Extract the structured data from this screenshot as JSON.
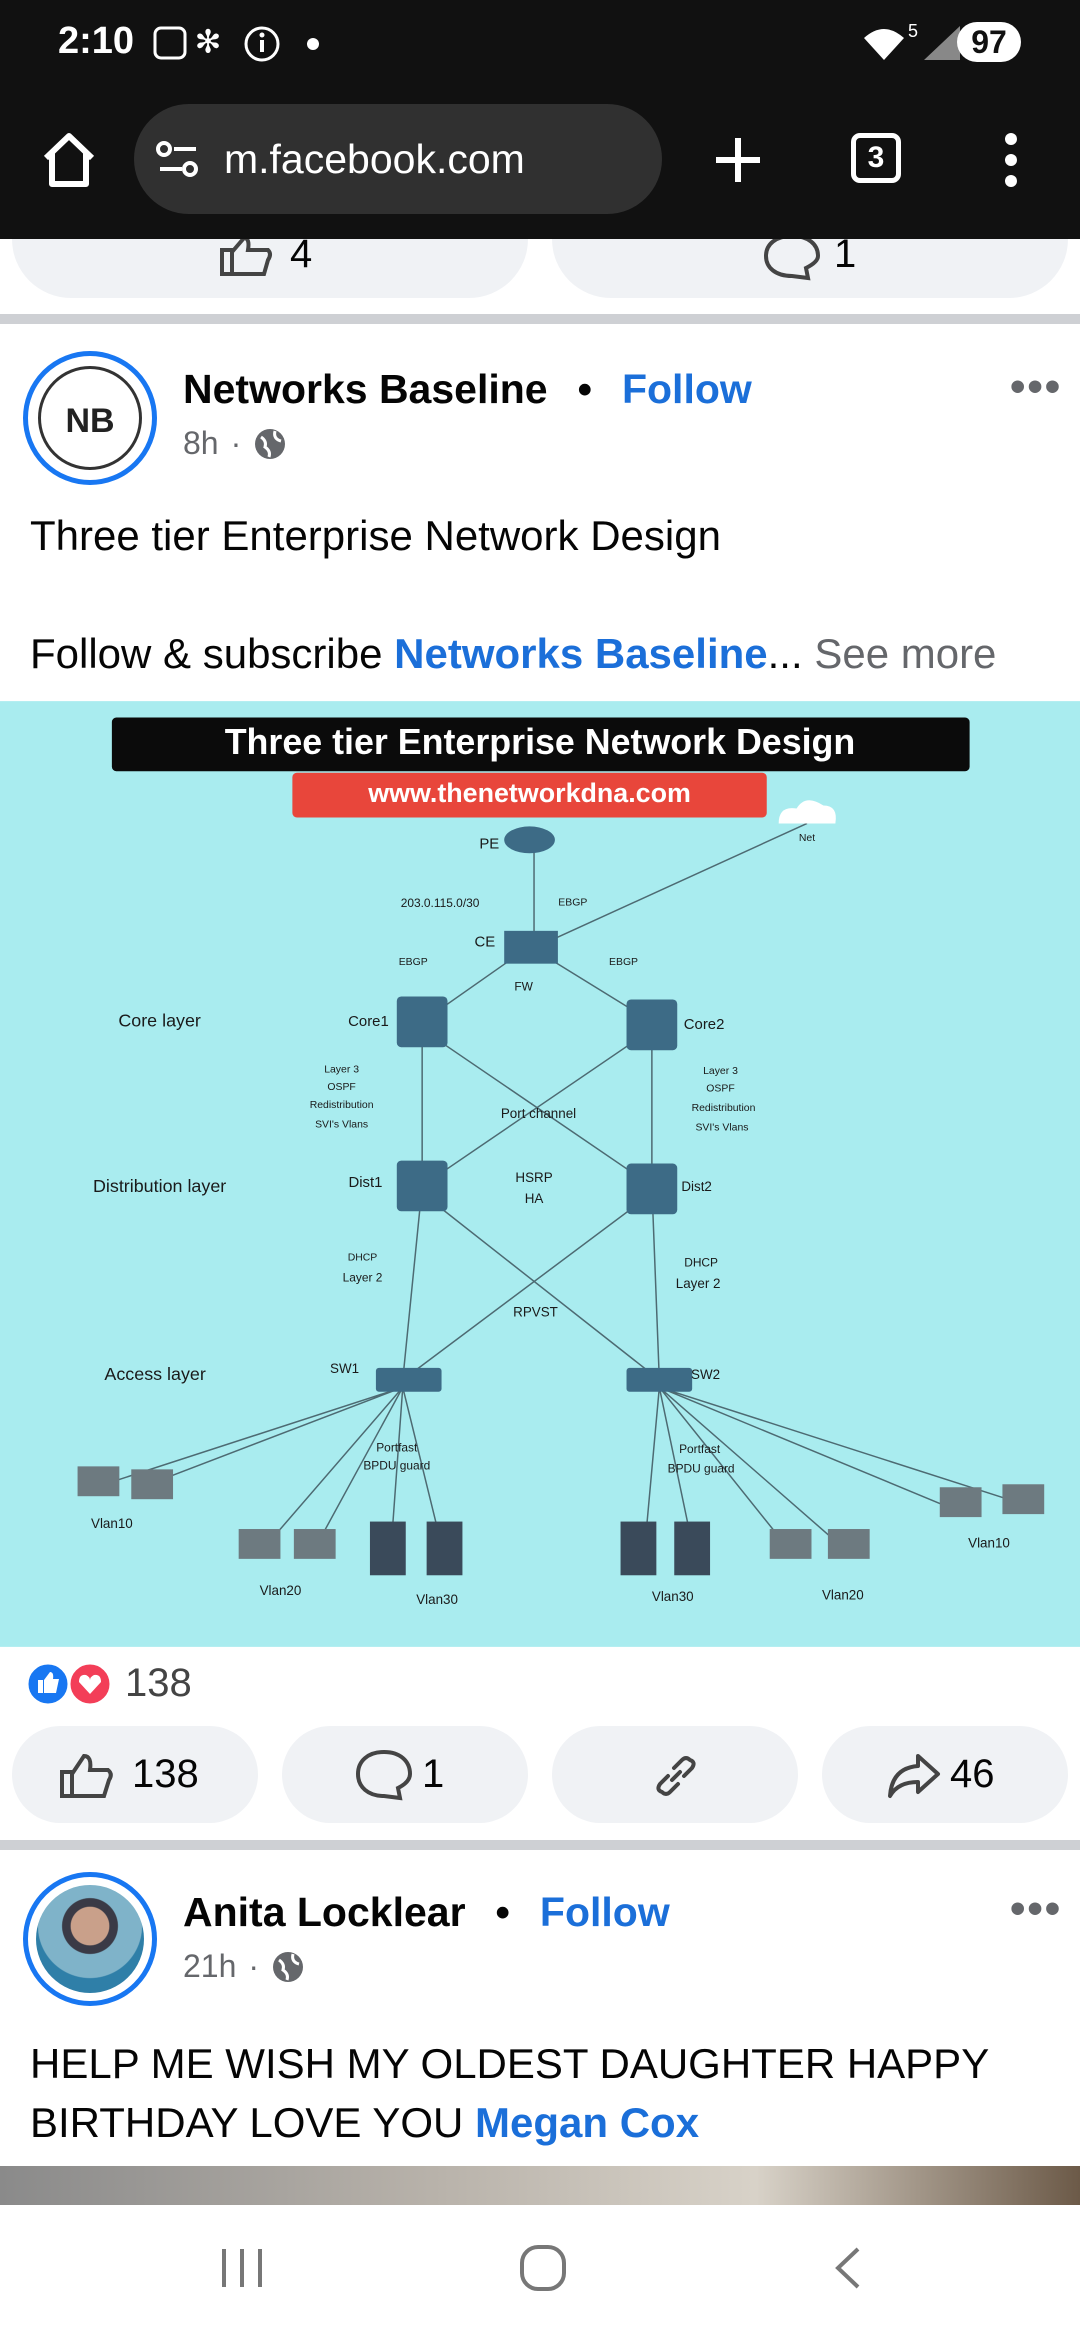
{
  "status": {
    "time": "2:10",
    "signal": "5",
    "battery": "97"
  },
  "browser": {
    "url": "m.facebook.com",
    "tabs": "3"
  },
  "previous_post": {
    "likes": "4",
    "comments": "1"
  },
  "posts": [
    {
      "author": "Networks Baseline",
      "avatar_text": "NB",
      "separator": "•",
      "follow": "Follow",
      "time": "8h",
      "dot": "·",
      "text": "Three tier Enterprise Network Design",
      "text2": {
        "lead": "Follow & subscribe",
        "link": "Networks Baseline",
        "ellipsis": "...",
        "more": "See more"
      },
      "image": {
        "title": "Three tier Enterprise Network Design",
        "url": "www.thenetworkdna.com",
        "labels": [
          "PE",
          "Net",
          "203.0.115.0/30",
          "EBGP",
          "CE",
          "FW",
          "EBGP",
          "EBGP",
          "Core layer",
          "Core1",
          "Core2",
          "Layer 3",
          "OSPF",
          "Redistribution",
          "SVI's Vlans",
          "Layer 3",
          "OSPF",
          "Redistribution",
          "SVI's Vlans",
          "Port channel",
          "Distribution layer",
          "Dist1",
          "HSRP",
          "HA",
          "Dist2",
          "DHCP",
          "Layer 2",
          "DHCP",
          "Layer 2",
          "RPVST",
          "Access layer",
          "SW1",
          "SW2",
          "Portfast",
          "BPDU guard",
          "Portfast",
          "BPDU guard",
          "Vlan10",
          "Vlan20",
          "Vlan30",
          "Vlan30",
          "Vlan20",
          "Vlan10"
        ]
      },
      "reactions": "138",
      "likes": "138",
      "comments": "1",
      "shares": "46"
    },
    {
      "author": "Anita Locklear",
      "separator": "•",
      "follow": "Follow",
      "time": "21h",
      "dot": "·",
      "text": {
        "body": "HELP ME WISH MY OLDEST DAUGHTER HAPPY BIRTHDAY LOVE YOU",
        "mention": "Megan Cox"
      }
    }
  ]
}
